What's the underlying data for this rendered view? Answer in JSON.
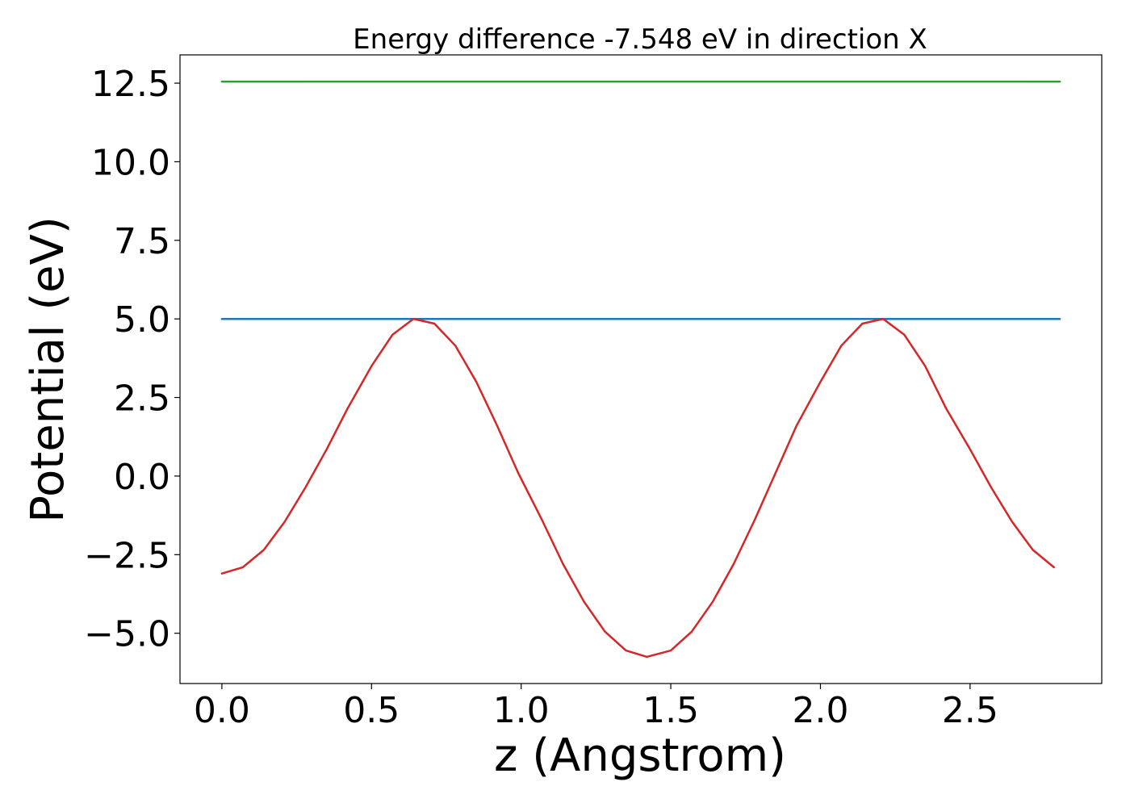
{
  "chart_data": {
    "type": "line",
    "title": "Energy difference -7.548 eV in direction X",
    "xlabel": "z (Angstrom)",
    "ylabel": "Potential (eV)",
    "xlim": [
      -0.14,
      2.94
    ],
    "ylim": [
      -6.6,
      13.4
    ],
    "xticks": [
      0.0,
      0.5,
      1.0,
      1.5,
      2.0,
      2.5
    ],
    "xtick_labels": [
      "0.0",
      "0.5",
      "1.0",
      "1.5",
      "2.0",
      "2.5"
    ],
    "yticks": [
      -5.0,
      -2.5,
      0.0,
      2.5,
      5.0,
      7.5,
      10.0,
      12.5
    ],
    "ytick_labels": [
      "−5.0",
      "−2.5",
      "0.0",
      "2.5",
      "5.0",
      "7.5",
      "10.0",
      "12.5"
    ],
    "grid": false,
    "series": [
      {
        "color": "#2ca02c",
        "x": [
          0.0,
          2.8
        ],
        "y": [
          12.55,
          12.55
        ]
      },
      {
        "color": "#1f77b4",
        "x": [
          0.0,
          2.8
        ],
        "y": [
          5.0,
          5.0
        ]
      },
      {
        "color": "#d62728",
        "x": [
          0.0,
          0.07,
          0.14,
          0.21,
          0.28,
          0.35,
          0.42,
          0.5,
          0.57,
          0.64,
          0.71,
          0.78,
          0.85,
          0.92,
          0.99,
          1.07,
          1.14,
          1.21,
          1.28,
          1.35,
          1.42,
          1.5,
          1.57,
          1.64,
          1.71,
          1.78,
          1.85,
          1.92,
          2.0,
          2.07,
          2.14,
          2.21,
          2.28,
          2.35,
          2.42,
          2.5,
          2.57,
          2.64,
          2.71,
          2.78
        ],
        "y": [
          -3.1,
          -2.9,
          -2.35,
          -1.45,
          -0.35,
          0.85,
          2.15,
          3.5,
          4.5,
          5.0,
          4.85,
          4.15,
          3.0,
          1.6,
          0.1,
          -1.4,
          -2.8,
          -4.0,
          -4.95,
          -5.55,
          -5.75,
          -5.55,
          -4.95,
          -4.0,
          -2.8,
          -1.4,
          0.1,
          1.6,
          3.0,
          4.15,
          4.85,
          5.0,
          4.5,
          3.5,
          2.15,
          0.85,
          -0.35,
          -1.45,
          -2.35,
          -2.9
        ]
      }
    ]
  }
}
